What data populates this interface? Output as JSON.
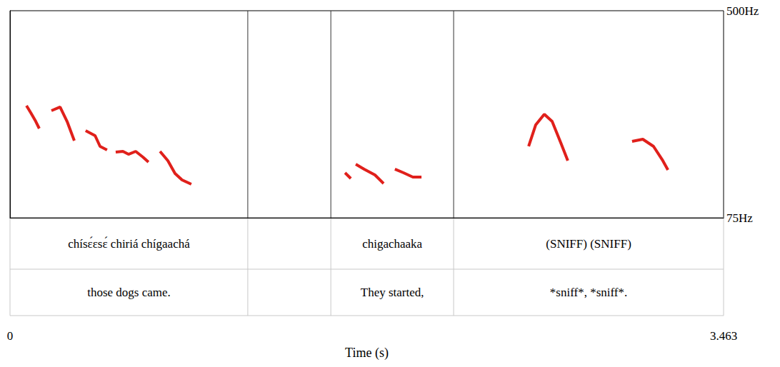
{
  "chart_data": {
    "type": "line",
    "x_label": "Time (s)",
    "xlim": [
      0,
      3.463
    ],
    "xticks": [
      0,
      3.463
    ],
    "ylim": [
      75,
      500
    ],
    "yticks": [
      {
        "value": 75,
        "label": "75Hz"
      },
      {
        "value": 500,
        "label": "500Hz"
      }
    ],
    "grid": false,
    "color": "#e0201b",
    "line_style": "solid",
    "x": [
      0.08,
      0.101,
      0.125,
      0.142,
      0.142,
      0.201,
      0.243,
      0.277,
      0.312,
      0.312,
      0.367,
      0.413,
      0.437,
      0.471,
      0.471,
      0.513,
      0.548,
      0.575,
      0.61,
      0.645,
      0.672,
      0.672,
      0.728,
      0.766,
      0.801,
      0.835,
      0.88,
      0.88,
      1.626,
      1.654,
      1.654,
      1.678,
      1.719,
      1.771,
      1.813,
      1.813,
      1.868,
      1.91,
      1.955,
      1.997,
      1.997,
      2.517,
      2.551,
      2.593,
      2.631,
      2.673,
      2.707,
      2.707,
      3.019,
      3.071,
      3.123,
      3.168,
      3.193
    ],
    "values": [
      305.1,
      290.4,
      272.8,
      258.2,
      null,
      294.8,
      302.2,
      272.8,
      233.3,
      null,
      253.8,
      243.5,
      221.5,
      214.2,
      null,
      209.8,
      211.3,
      205.4,
      211.3,
      199.6,
      189.3,
      null,
      211.3,
      192.3,
      165.9,
      152.7,
      143.9,
      null,
      167.3,
      155.6,
      null,
      184.9,
      174.7,
      162.9,
      145.3,
      null,
      174.7,
      167.3,
      158.5,
      158.5,
      null,
      221.6,
      265.5,
      287.5,
      272.8,
      228.9,
      192.3,
      null,
      231.8,
      236.2,
      221.6,
      192.3,
      173.2
    ],
    "tiers": [
      {
        "intervals": [
          {
            "start": 0,
            "end": 1.154,
            "text": "chísɛ́ɛsɛ́ chiriá chígaachá"
          },
          {
            "start": 1.557,
            "end": 2.153,
            "text": "chigachaaka"
          },
          {
            "start": 2.153,
            "end": 3.463,
            "text": "(SNIFF) (SNIFF)"
          }
        ]
      },
      {
        "intervals": [
          {
            "start": 0,
            "end": 1.154,
            "text": "those dogs came."
          },
          {
            "start": 1.557,
            "end": 2.153,
            "text": "They started,"
          },
          {
            "start": 2.153,
            "end": 3.463,
            "text": "*sniff*, *sniff*."
          }
        ]
      }
    ]
  }
}
